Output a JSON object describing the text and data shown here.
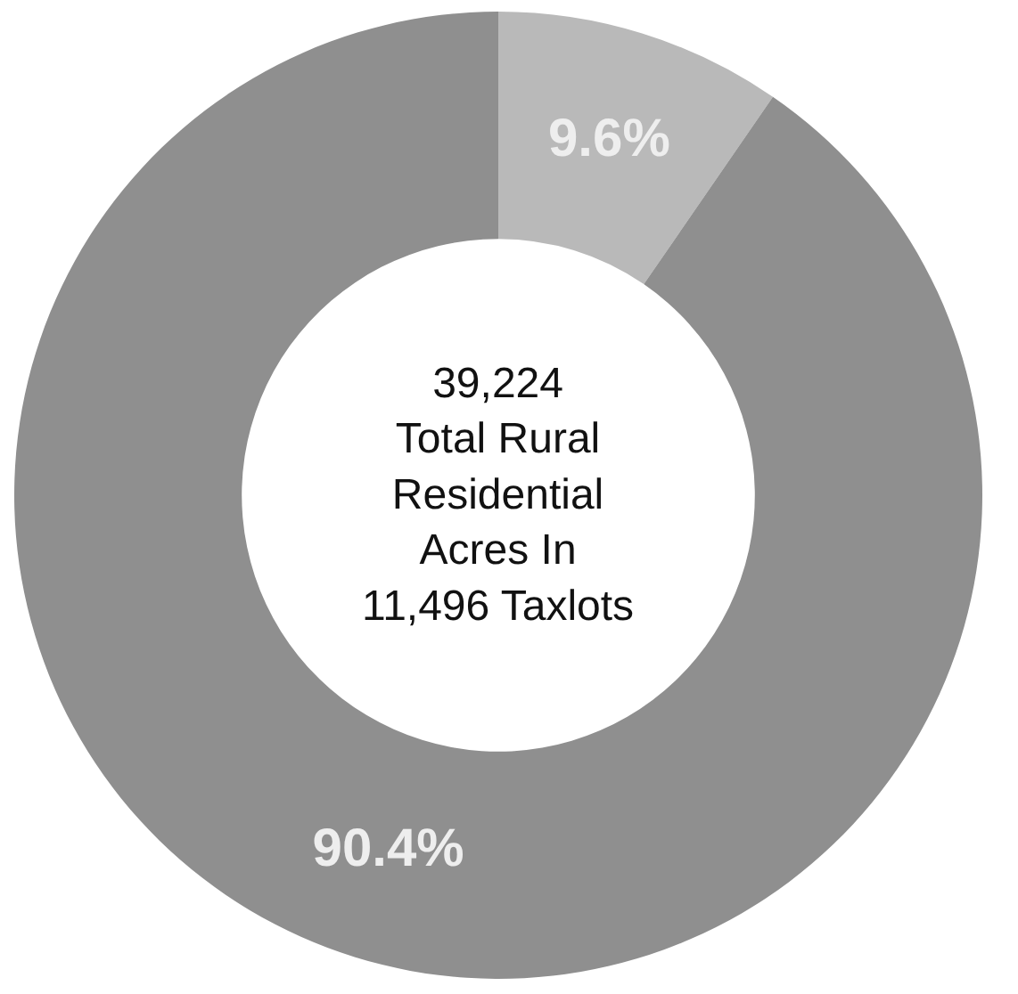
{
  "chart_data": {
    "type": "donut",
    "categories": [
      null,
      null
    ],
    "values": [
      9.6,
      90.4
    ],
    "colors": [
      "#b9b9b9",
      "#8f8f8f"
    ],
    "value_labels": [
      "9.6%",
      "90.4%"
    ],
    "annotations": [
      "39,224\nTotal Rural\nResidential\nAcres In\n11,496 Taxlots"
    ]
  }
}
